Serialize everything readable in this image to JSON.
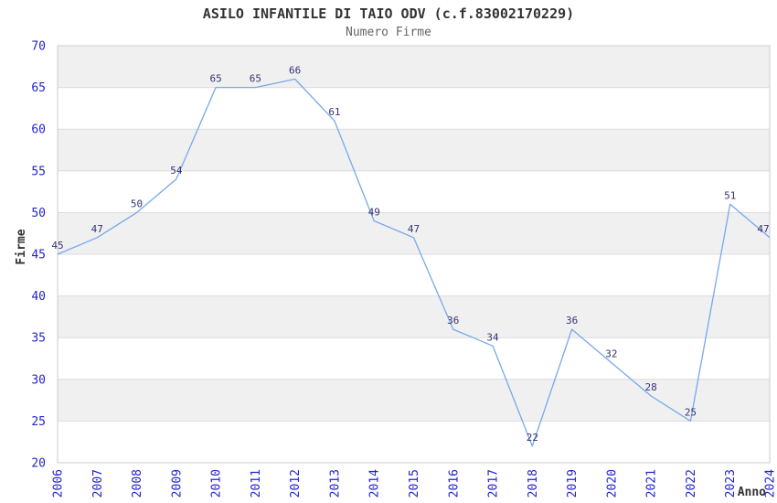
{
  "title": "ASILO INFANTILE DI TAIO ODV (c.f.83002170229)",
  "subtitle": "Numero Firme",
  "chart_data": {
    "type": "line",
    "x": [
      2006,
      2007,
      2008,
      2009,
      2010,
      2011,
      2012,
      2013,
      2014,
      2015,
      2016,
      2017,
      2018,
      2019,
      2020,
      2021,
      2022,
      2023,
      2024
    ],
    "series": [
      {
        "name": "Numero Firme",
        "values": [
          45,
          47,
          50,
          54,
          65,
          65,
          66,
          61,
          49,
          47,
          36,
          34,
          22,
          36,
          32,
          28,
          25,
          51,
          47
        ]
      }
    ],
    "title": "ASILO INFANTILE DI TAIO ODV (c.f.83002170229)",
    "subtitle": "Numero Firme",
    "xlabel": "Anno",
    "ylabel": "Firme",
    "ylim": [
      20,
      70
    ],
    "ytick_step": 5,
    "grid": true,
    "bands": "alternating horizontal, gray on odd 5-unit bands (25-30, 35-40, 45-50, 55-60, 65-70)",
    "legend_position": "none",
    "data_labels": true
  },
  "colors": {
    "line": "#77a8eb",
    "band_gray": "#f0f0f0",
    "grid": "#dcdcdc",
    "border": "#cccccc",
    "tick_label": "#2323cd",
    "data_label": "#333377",
    "axis_title": "#333333",
    "title": "#333333",
    "subtitle": "#666666",
    "background": "#ffffff"
  }
}
